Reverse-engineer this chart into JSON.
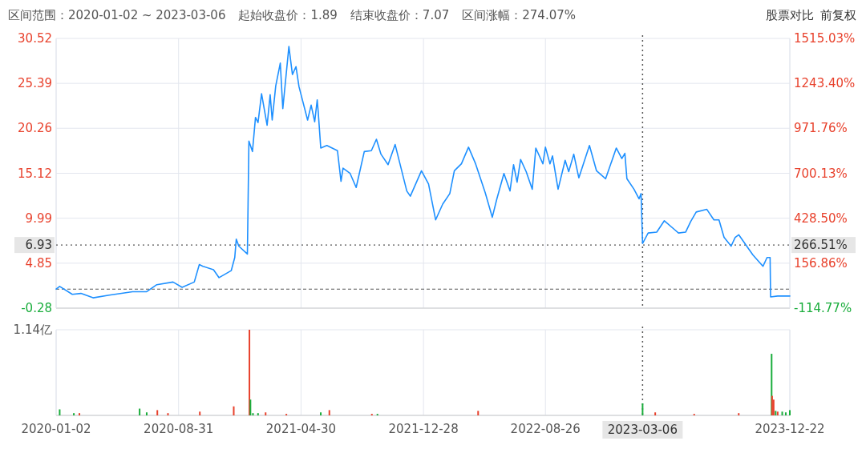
{
  "chart_data": [
    {
      "type": "line",
      "annotations": [
        "区间范围：2020-01-02 ~ 2023-03-06",
        "起始收盘价：1.89",
        "结束收盘价：7.07",
        "区间涨幅：274.07%",
        "股票对比",
        "前复权",
        {
          "text": "266.51%",
          "x": "2023-12-22",
          "y": 6.93
        }
      ],
      "x": [
        "2020-01-02",
        "2020-01-09",
        "2020-02-03",
        "2020-02-20",
        "2020-03-15",
        "2020-04-16",
        "2020-06-01",
        "2020-06-29",
        "2020-07-19",
        "2020-08-20",
        "2020-09-07",
        "2020-10-01",
        "2020-10-11",
        "2020-10-18",
        "2020-11-08",
        "2020-11-19",
        "2020-12-13",
        "2020-12-20",
        "2020-12-23",
        "2020-12-28",
        "2021-01-14",
        "2021-01-17",
        "2021-01-24",
        "2021-01-30",
        "2021-02-04",
        "2021-02-11",
        "2021-02-22",
        "2021-02-28",
        "2021-03-04",
        "2021-03-11",
        "2021-03-20",
        "2021-03-25",
        "2021-04-06",
        "2021-04-13",
        "2021-04-20",
        "2021-04-26",
        "2021-05-13",
        "2021-05-20",
        "2021-05-27",
        "2021-06-01",
        "2021-06-03",
        "2021-06-08",
        "2021-06-20",
        "2021-07-11",
        "2021-07-18",
        "2021-07-22",
        "2021-08-05",
        "2021-08-17",
        "2021-09-02",
        "2021-09-16",
        "2021-09-26",
        "2021-10-05",
        "2021-10-19",
        "2021-11-02",
        "2021-11-25",
        "2021-12-02",
        "2021-12-24",
        "2022-01-07",
        "2022-01-21",
        "2022-02-04",
        "2022-02-18",
        "2022-02-27",
        "2022-03-13",
        "2022-03-27",
        "2022-04-10",
        "2022-04-29",
        "2022-05-13",
        "2022-05-22",
        "2022-06-05",
        "2022-06-17",
        "2022-06-24",
        "2022-07-01",
        "2022-07-08",
        "2022-07-19",
        "2022-07-31",
        "2022-08-07",
        "2022-08-21",
        "2022-08-26",
        "2022-09-04",
        "2022-09-09",
        "2022-09-20",
        "2022-10-04",
        "2022-10-11",
        "2022-10-21",
        "2022-10-31",
        "2022-11-21",
        "2022-12-05",
        "2022-12-23",
        "2023-01-13",
        "2023-01-24",
        "2023-01-30",
        "2023-02-03",
        "2023-02-17",
        "2023-02-27",
        "2023-03-03",
        "2023-03-06",
        "2023-03-17",
        "2023-04-03",
        "2023-04-18",
        "2023-05-08",
        "2023-05-16",
        "2023-05-30",
        "2023-06-09",
        "2023-06-20",
        "2023-07-11",
        "2023-07-25",
        "2023-08-04",
        "2023-08-14",
        "2023-08-28",
        "2023-09-05",
        "2023-09-12",
        "2023-10-10",
        "2023-10-30",
        "2023-11-07",
        "2023-11-13",
        "2023-11-14",
        "2023-11-28",
        "2023-12-22"
      ],
      "series": [
        {
          "color": "#1e90ff",
          "values": [
            1.9,
            2.2,
            1.3,
            1.4,
            0.9,
            1.2,
            1.6,
            1.6,
            2.4,
            2.7,
            2.1,
            2.7,
            4.7,
            4.5,
            4.1,
            3.2,
            4.0,
            5.5,
            7.6,
            6.8,
            5.9,
            18.8,
            17.6,
            21.5,
            20.9,
            24.2,
            20.6,
            24.1,
            21.2,
            25.1,
            27.7,
            22.5,
            29.6,
            26.4,
            27.3,
            25.0,
            21.2,
            22.9,
            21.0,
            23.5,
            22.1,
            18.0,
            18.3,
            17.7,
            14.2,
            15.7,
            15.1,
            13.5,
            17.6,
            17.7,
            19.0,
            17.3,
            16.1,
            18.4,
            13.1,
            12.5,
            15.4,
            13.9,
            9.8,
            11.6,
            12.8,
            15.4,
            16.2,
            18.1,
            16.2,
            12.9,
            10.1,
            12.2,
            15.1,
            13.1,
            16.1,
            14.1,
            16.7,
            15.3,
            13.3,
            18.0,
            16.2,
            18.1,
            16.2,
            17.1,
            13.3,
            16.6,
            15.3,
            17.3,
            14.6,
            18.3,
            15.4,
            14.5,
            18.0,
            16.8,
            17.4,
            14.5,
            13.3,
            12.2,
            12.8,
            7.1,
            8.3,
            8.4,
            9.7,
            8.7,
            8.3,
            8.4,
            9.6,
            10.7,
            11.0,
            9.8,
            9.8,
            7.8,
            6.8,
            7.8,
            8.1,
            5.8,
            4.5,
            5.5,
            5.5,
            1.0,
            1.1,
            1.1
          ]
        }
      ],
      "xlim": [
        "2020-01-02",
        "2023-12-22"
      ],
      "xticks": [
        {
          "value": "2020-01-02",
          "label": null
        },
        {
          "value": "2020-08-31",
          "label": null
        },
        {
          "value": "2021-04-30",
          "label": null
        },
        {
          "value": "2021-12-28",
          "label": null
        },
        {
          "value": "2022-08-26",
          "label": null
        },
        {
          "value": "2023-12-22",
          "label": null
        }
      ],
      "ylim": [
        -0.28,
        30.52
      ],
      "yticks": [
        -0.28,
        4.85,
        9.99,
        15.12,
        20.26,
        25.39,
        30.52
      ],
      "y2lim": [
        -114.77,
        1515.03
      ],
      "y2ticks": [
        {
          "value": -114.77,
          "label": "-114.77%"
        },
        {
          "value": 156.86,
          "label": "156.86%"
        },
        {
          "value": 428.5,
          "label": "428.50%"
        },
        {
          "value": 700.13,
          "label": "700.13%"
        },
        {
          "value": 971.76,
          "label": "971.76%"
        },
        {
          "value": 1243.4,
          "label": "1243.40%"
        },
        {
          "value": 1515.03,
          "label": "1515.03%"
        }
      ],
      "ref_lines": [
        {
          "axis": "y",
          "value": 6.93,
          "label": "6.93",
          "line_style": "dotted"
        },
        {
          "axis": "y",
          "value": 1.89,
          "line_style": "dashed"
        },
        {
          "axis": "x",
          "value": "2023-03-06",
          "line_style": "dotted"
        }
      ],
      "tick_labels": "y",
      "grid": true
    },
    {
      "type": "bar",
      "x": [
        "2020-01-09",
        "2020-02-06",
        "2020-02-17",
        "2020-06-15",
        "2020-06-29",
        "2020-07-20",
        "2020-08-10",
        "2020-10-12",
        "2020-12-18",
        "2021-01-18",
        "2021-01-20",
        "2021-01-25",
        "2021-02-04",
        "2021-02-19",
        "2021-04-01",
        "2021-06-08",
        "2021-06-25",
        "2021-09-17",
        "2021-09-28",
        "2022-04-15",
        "2023-03-06",
        "2023-03-31",
        "2023-06-16",
        "2023-09-12",
        "2023-11-16",
        "2023-11-17",
        "2023-11-20",
        "2023-11-24",
        "2023-11-28",
        "2023-12-07",
        "2023-12-14",
        "2023-12-22"
      ],
      "values": [
        0.08,
        0.03,
        0.03,
        0.09,
        0.04,
        0.07,
        0.03,
        0.05,
        0.12,
        1.14,
        0.21,
        0.03,
        0.03,
        0.04,
        0.02,
        0.04,
        0.07,
        0.02,
        0.02,
        0.06,
        0.16,
        0.04,
        0.02,
        0.03,
        0.82,
        0.26,
        0.21,
        0.06,
        0.05,
        0.05,
        0.04,
        0.07
      ],
      "colors": [
        "#1aad3c",
        "#1aad3c",
        "#e8412c",
        "#1aad3c",
        "#1aad3c",
        "#e8412c",
        "#e8412c",
        "#e8412c",
        "#e8412c",
        "#e8412c",
        "#1aad3c",
        "#1aad3c",
        "#1aad3c",
        "#e8412c",
        "#e8412c",
        "#1aad3c",
        "#e8412c",
        "#e8412c",
        "#1aad3c",
        "#e8412c",
        "#1aad3c",
        "#e8412c",
        "#e8412c",
        "#e8412c",
        "#1aad3c",
        "#e8412c",
        "#e8412c",
        "#1aad3c",
        "#e8412c",
        "#1aad3c",
        "#1aad3c",
        "#1aad3c"
      ],
      "xlim": [
        "2020-01-02",
        "2023-12-22"
      ],
      "xticks": [
        {
          "value": "2020-01-02",
          "label": "2020-01-02"
        },
        {
          "value": "2020-08-31",
          "label": "2020-08-31"
        },
        {
          "value": "2021-04-30",
          "label": "2021-04-30"
        },
        {
          "value": "2021-12-28",
          "label": "2021-12-28"
        },
        {
          "value": "2022-08-26",
          "label": "2022-08-26"
        },
        {
          "value": "2023-12-22",
          "label": "2023-12-22"
        }
      ],
      "ylim": [
        0,
        1.14
      ],
      "yticks": [
        {
          "value": 0,
          "label": null
        },
        {
          "value": 1.14,
          "label": "1.14亿"
        }
      ],
      "ref_lines": [
        {
          "axis": "x",
          "value": "2023-03-06",
          "label": "2023-03-06",
          "line_style": "dotted"
        }
      ],
      "grid": true
    }
  ]
}
